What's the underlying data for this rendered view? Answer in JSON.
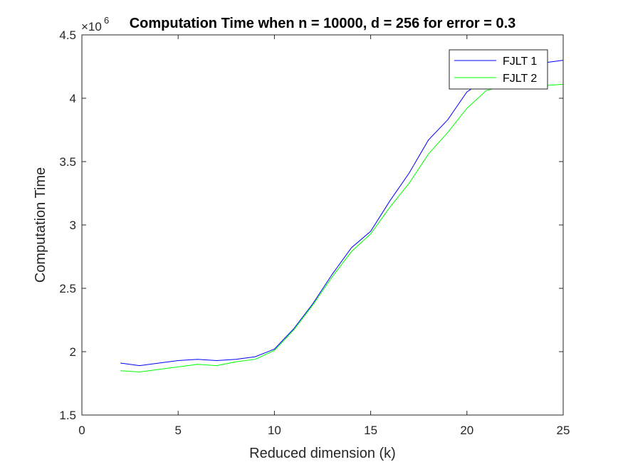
{
  "chart_data": {
    "type": "line",
    "title": "Computation Time when n = 10000, d = 256 for error = 0.3",
    "xlabel": "Reduced dimension (k)",
    "ylabel": "Computation Time",
    "exponent_base": "×10",
    "exponent_power": "6",
    "xlim": [
      0,
      25
    ],
    "ylim": [
      1.5,
      4.5
    ],
    "xticks": [
      0,
      5,
      10,
      15,
      20,
      25
    ],
    "xtick_labels": [
      "0",
      "5",
      "10",
      "15",
      "20",
      "25"
    ],
    "yticks": [
      1.5,
      2,
      2.5,
      3,
      3.5,
      4,
      4.5
    ],
    "ytick_labels": [
      "1.5",
      "2",
      "2.5",
      "3",
      "3.5",
      "4",
      "4.5"
    ],
    "grid": false,
    "legend_position": "top-right",
    "x": [
      2,
      3,
      4,
      5,
      6,
      7,
      8,
      9,
      10,
      11,
      12,
      13,
      14,
      15,
      16,
      17,
      18,
      19,
      20,
      21,
      22,
      23,
      24,
      25
    ],
    "series": [
      {
        "name": "FJLT 1",
        "color": "#0000ff",
        "values": [
          1.91,
          1.89,
          1.91,
          1.93,
          1.94,
          1.93,
          1.94,
          1.96,
          2.02,
          2.18,
          2.38,
          2.61,
          2.82,
          2.95,
          3.19,
          3.41,
          3.67,
          3.83,
          4.05,
          4.15,
          4.21,
          4.26,
          4.28,
          4.3
        ]
      },
      {
        "name": "FJLT 2",
        "color": "#00ff00",
        "values": [
          1.85,
          1.84,
          1.86,
          1.88,
          1.9,
          1.89,
          1.92,
          1.94,
          2.01,
          2.17,
          2.37,
          2.59,
          2.79,
          2.93,
          3.14,
          3.33,
          3.56,
          3.73,
          3.92,
          4.06,
          4.1,
          4.1,
          4.1,
          4.11
        ]
      }
    ]
  }
}
